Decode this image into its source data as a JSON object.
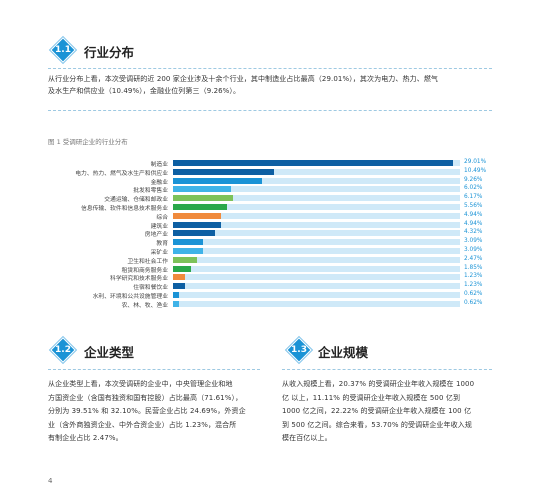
{
  "sections": [
    {
      "num": "1.1",
      "title": "行业分布"
    },
    {
      "num": "1.2",
      "title": "企业类型"
    },
    {
      "num": "1.3",
      "title": "企业规模"
    }
  ],
  "intro_lines": [
    "从行业分布上看，本次受调研的近 200 家企业涉及十余个行业，其中制造业占比最高（29.01%），其次为电力、热力、燃气",
    "及水生产和供应业（10.49%），金融业位列第三（9.26%）。"
  ],
  "figure_caption": "图 1 受调研企业的行业分布",
  "colors": {
    "accent": "#1a93d6",
    "track": "#cfe9f8"
  },
  "chart_data": {
    "type": "bar",
    "orientation": "horizontal",
    "title": "图 1 受调研企业的行业分布",
    "xlim": [
      0,
      100
    ],
    "categories": [
      "制造业",
      "电力、热力、燃气及水生产和供应业",
      "金融业",
      "批发和零售业",
      "交通运输、仓储和邮政业",
      "信息传输、软件和信息技术服务业",
      "综合",
      "建筑业",
      "房地产业",
      "教育",
      "采矿业",
      "卫生和社会工作",
      "租赁和商务服务业",
      "科学研究和技术服务业",
      "住宿和餐饮业",
      "水利、环境和公共设施管理业",
      "农、林、牧、渔业"
    ],
    "values": [
      29.01,
      10.49,
      9.26,
      6.02,
      6.17,
      5.56,
      4.94,
      4.94,
      4.32,
      3.09,
      3.09,
      2.47,
      1.85,
      1.23,
      1.23,
      0.62,
      0.62
    ],
    "value_labels": [
      "29.01%",
      "10.49%",
      "9.26%",
      "6.02%",
      "6.17%",
      "5.56%",
      "4.94%",
      "4.94%",
      "4.32%",
      "3.09%",
      "3.09%",
      "2.47%",
      "1.85%",
      "1.23%",
      "1.23%",
      "0.62%",
      "0.62%"
    ],
    "bar_colors": [
      "#0d5fa3",
      "#0d5fa3",
      "#1a93d6",
      "#3fb3e8",
      "#7dc25a",
      "#2aa84a",
      "#f08a3c",
      "#0d5fa3",
      "#0d5fa3",
      "#1a93d6",
      "#3fb3e8",
      "#7dc25a",
      "#2aa84a",
      "#f08a3c",
      "#0d5fa3",
      "#1a93d6",
      "#3fb3e8"
    ]
  },
  "type_lines": [
    "从企业类型上看，本次受调研的企业中，中央管理企业和地",
    "方国资企业（含国有独资和国有控股）占比最高（71.61%），",
    "分别为 39.51% 和 32.10%。民营企业占比 24.69%，外资企",
    "业（含外商独资企业、中外合资企业）占比 1.23%，混合所",
    "有制企业占比 2.47%。"
  ],
  "scale_lines": [
    "从收入规模上看，20.37% 的受调研企业年收入规模在 1000",
    "亿 以上，11.11% 的受调研企业年收入规模在 500 亿到",
    "1000 亿之间，22.22% 的受调研企业年收入规模在 100 亿",
    "到 500 亿之间。综合来看，53.70% 的受调研企业年收入规",
    "模在百亿以上。"
  ],
  "page_number": "4"
}
